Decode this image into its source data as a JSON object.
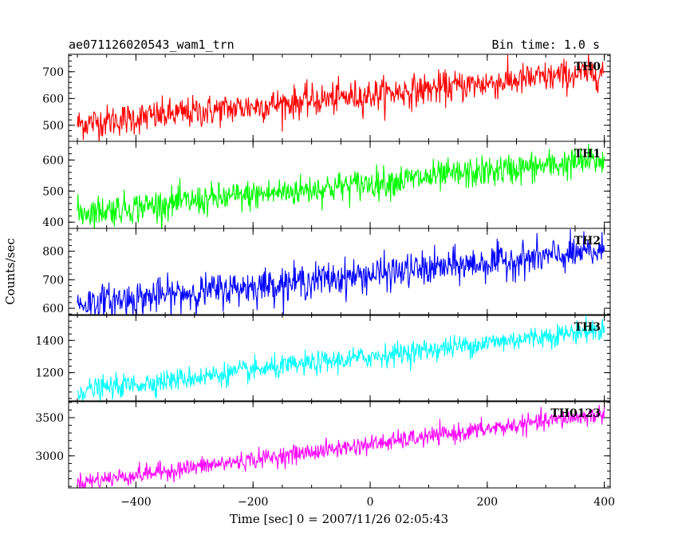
{
  "chart_data": {
    "type": "line",
    "title": "ae071126020543_wam1_trn",
    "subtitle": "Bin time: 1.0 s",
    "xlabel": "Time [sec] 0 = 2007/11/26 02:05:43",
    "ylabel": "Counts/sec",
    "xlim": [
      -515,
      410
    ],
    "x_range": [
      -500,
      400
    ],
    "x_ticks": [
      -400,
      -200,
      0,
      200,
      400
    ],
    "x_tick_labels": [
      "−400",
      "−200",
      "0",
      "200",
      "400"
    ],
    "grid": false,
    "series": [
      {
        "name": "TH0",
        "color": "#ff0000",
        "ylim": [
          440,
          765
        ],
        "y_ticks": [
          500,
          600,
          700
        ],
        "y_tick_labels": [
          "500",
          "600",
          "700"
        ],
        "trend_start": 505,
        "trend_end": 700,
        "noise": 30
      },
      {
        "name": "TH1",
        "color": "#00ff00",
        "ylim": [
          380,
          660
        ],
        "y_ticks": [
          400,
          500,
          600
        ],
        "y_tick_labels": [
          "400",
          "500",
          "600"
        ],
        "trend_start": 430,
        "trend_end": 600,
        "noise": 25
      },
      {
        "name": "TH2",
        "color": "#0000ff",
        "ylim": [
          575,
          880
        ],
        "y_ticks": [
          600,
          700,
          800
        ],
        "y_tick_labels": [
          "600",
          "700",
          "800"
        ],
        "trend_start": 615,
        "trend_end": 800,
        "noise": 30
      },
      {
        "name": "TH3",
        "color": "#00ffff",
        "ylim": [
          1020,
          1560
        ],
        "y_ticks": [
          1200,
          1400
        ],
        "y_tick_labels": [
          "1200",
          "1400"
        ],
        "trend_start": 1085,
        "trend_end": 1470,
        "noise": 35
      },
      {
        "name": "TH0123",
        "color": "#ff00ff",
        "ylim": [
          2580,
          3720
        ],
        "y_ticks": [
          3000,
          3500
        ],
        "y_tick_labels": [
          "3000",
          "3500"
        ],
        "trend_start": 2650,
        "trend_end": 3550,
        "noise": 60
      }
    ]
  }
}
